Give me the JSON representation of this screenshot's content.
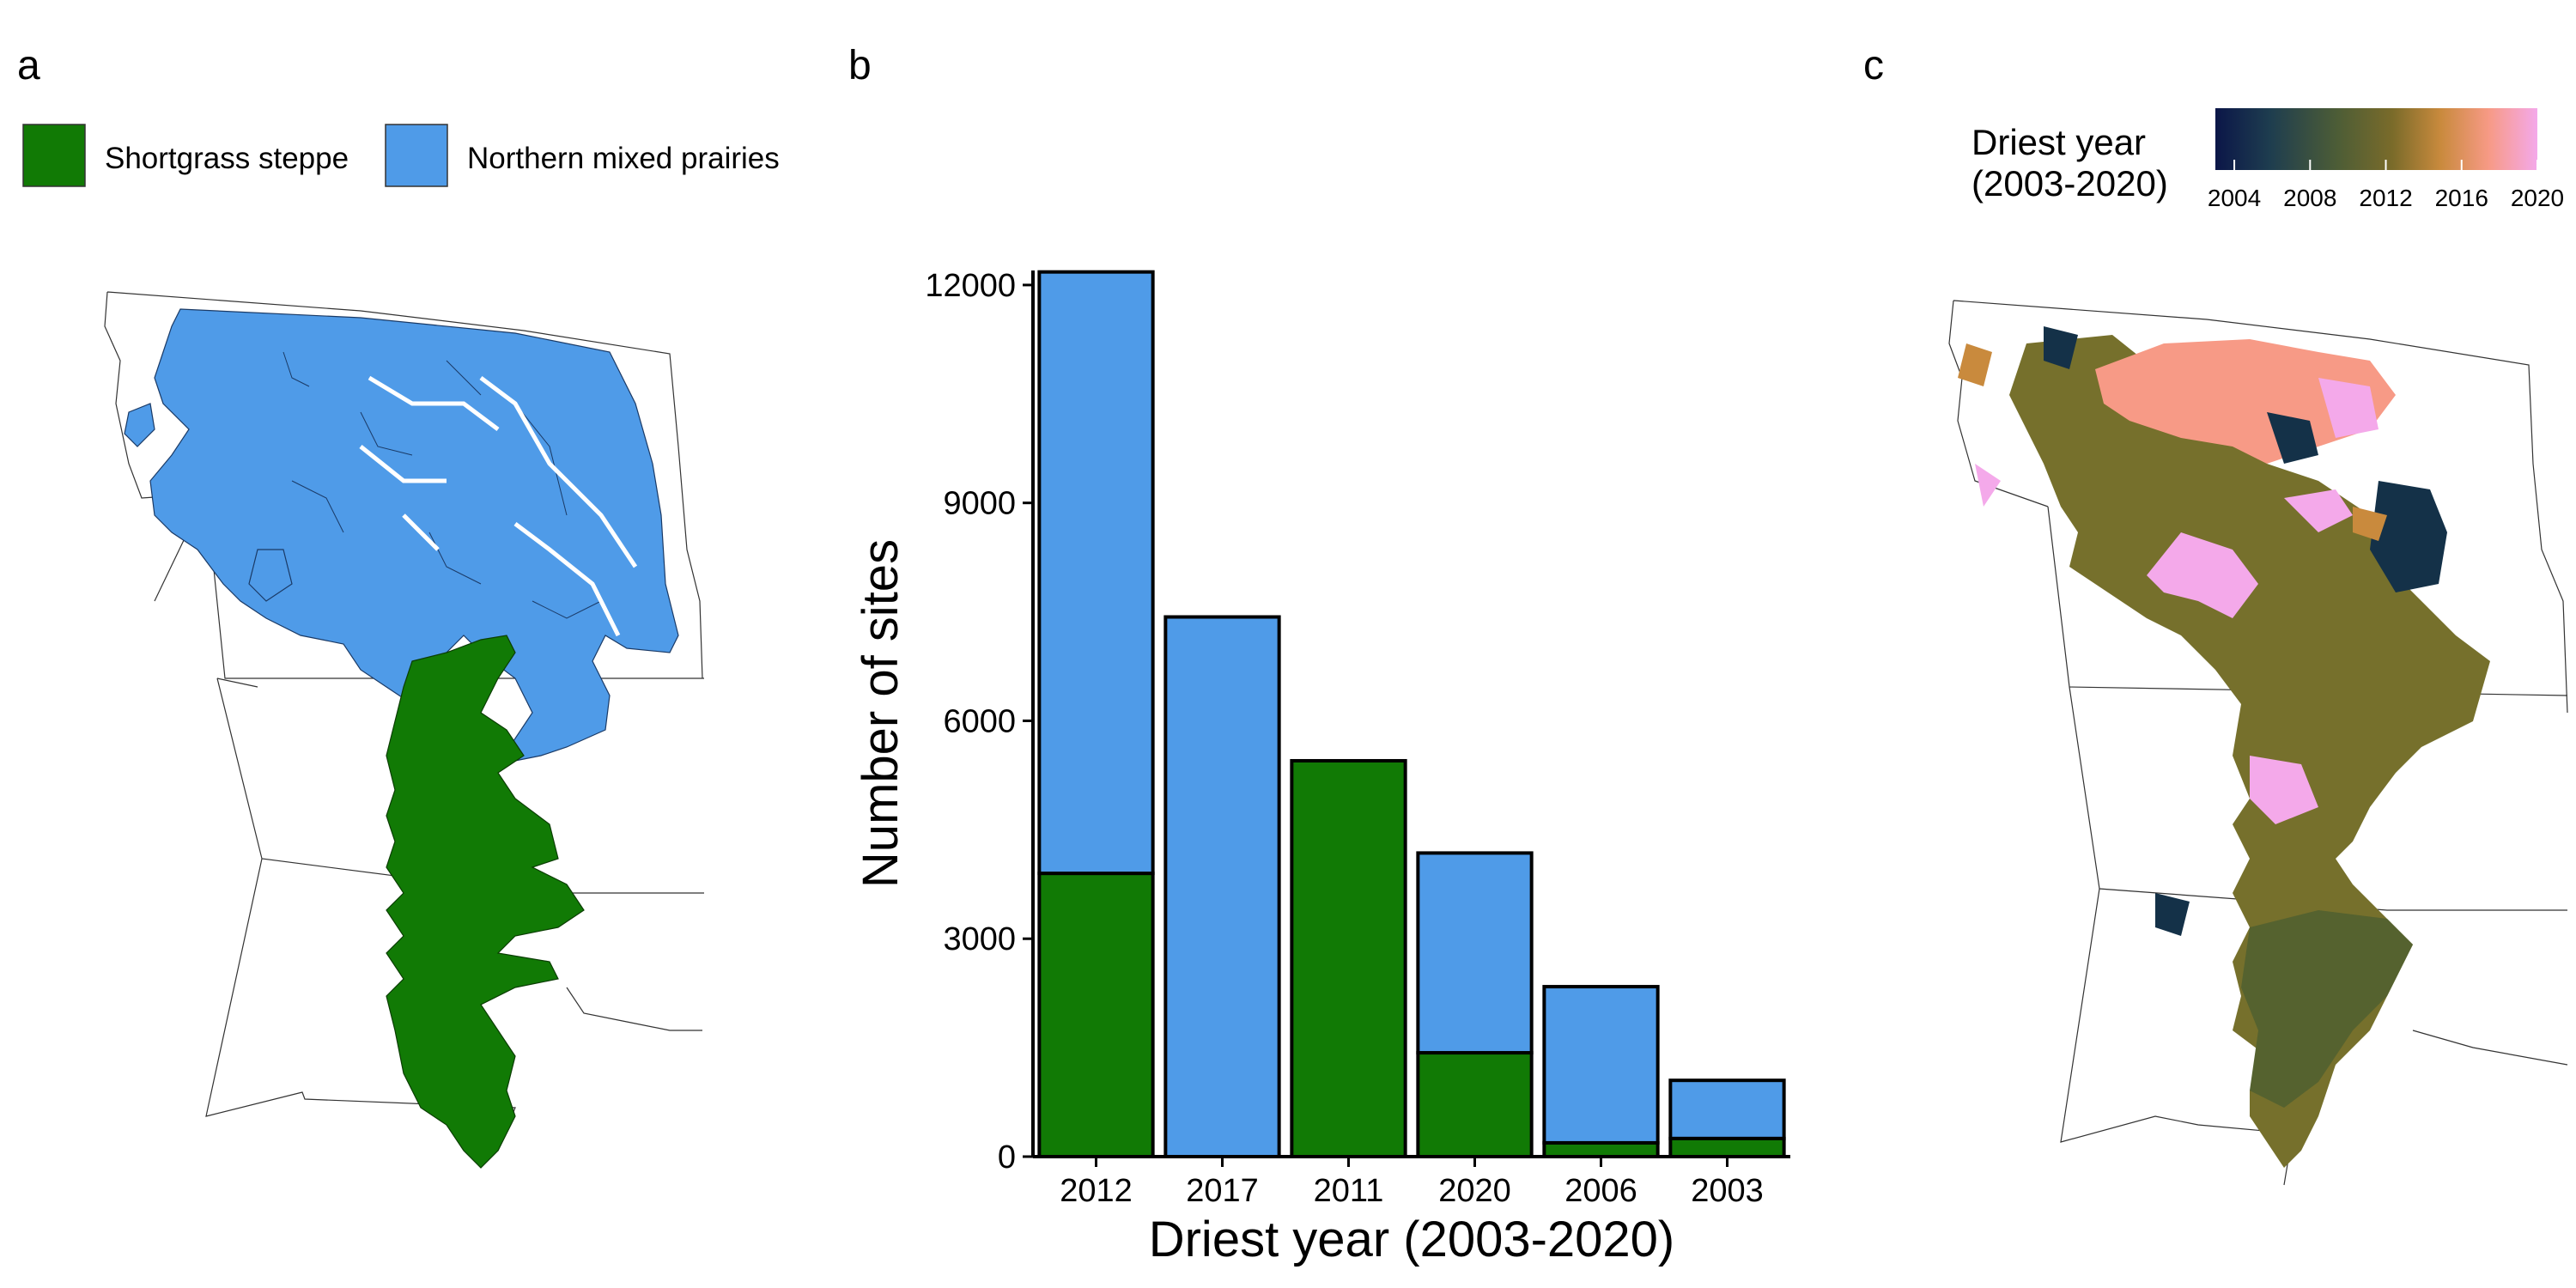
{
  "panels": {
    "a": {
      "letter": "a",
      "legend": [
        {
          "label": "Shortgrass steppe",
          "color": "#117a05"
        },
        {
          "label": "Northern mixed prairies",
          "color": "#4f9be8"
        }
      ]
    },
    "b": {
      "letter": "b"
    },
    "c": {
      "letter": "c",
      "legend_title_line1": "Driest year",
      "legend_title_line2": "(2003-2020)",
      "ticks": [
        "2004",
        "2008",
        "2012",
        "2016",
        "2020"
      ],
      "gradient_colors": [
        "#0b1648",
        "#1e3d4f",
        "#4d5d36",
        "#7a6b2a",
        "#c98a3d",
        "#f79a86",
        "#f4a9ea"
      ]
    }
  },
  "chart_data": {
    "type": "bar",
    "stacked": true,
    "categories": [
      "2012",
      "2017",
      "2011",
      "2020",
      "2006",
      "2003"
    ],
    "series": [
      {
        "name": "Shortgrass steppe",
        "color": "#117a05",
        "values": [
          3900,
          0,
          5450,
          1430,
          190,
          250
        ]
      },
      {
        "name": "Northern mixed prairies",
        "color": "#4f9be8",
        "values": [
          8280,
          7430,
          0,
          2750,
          2150,
          800
        ]
      }
    ],
    "xlabel": "Driest year (2003-2020)",
    "ylabel": "Number of sites",
    "ylim": [
      0,
      12200
    ],
    "yticks": [
      0,
      3000,
      6000,
      9000,
      12000
    ],
    "grid": false
  }
}
